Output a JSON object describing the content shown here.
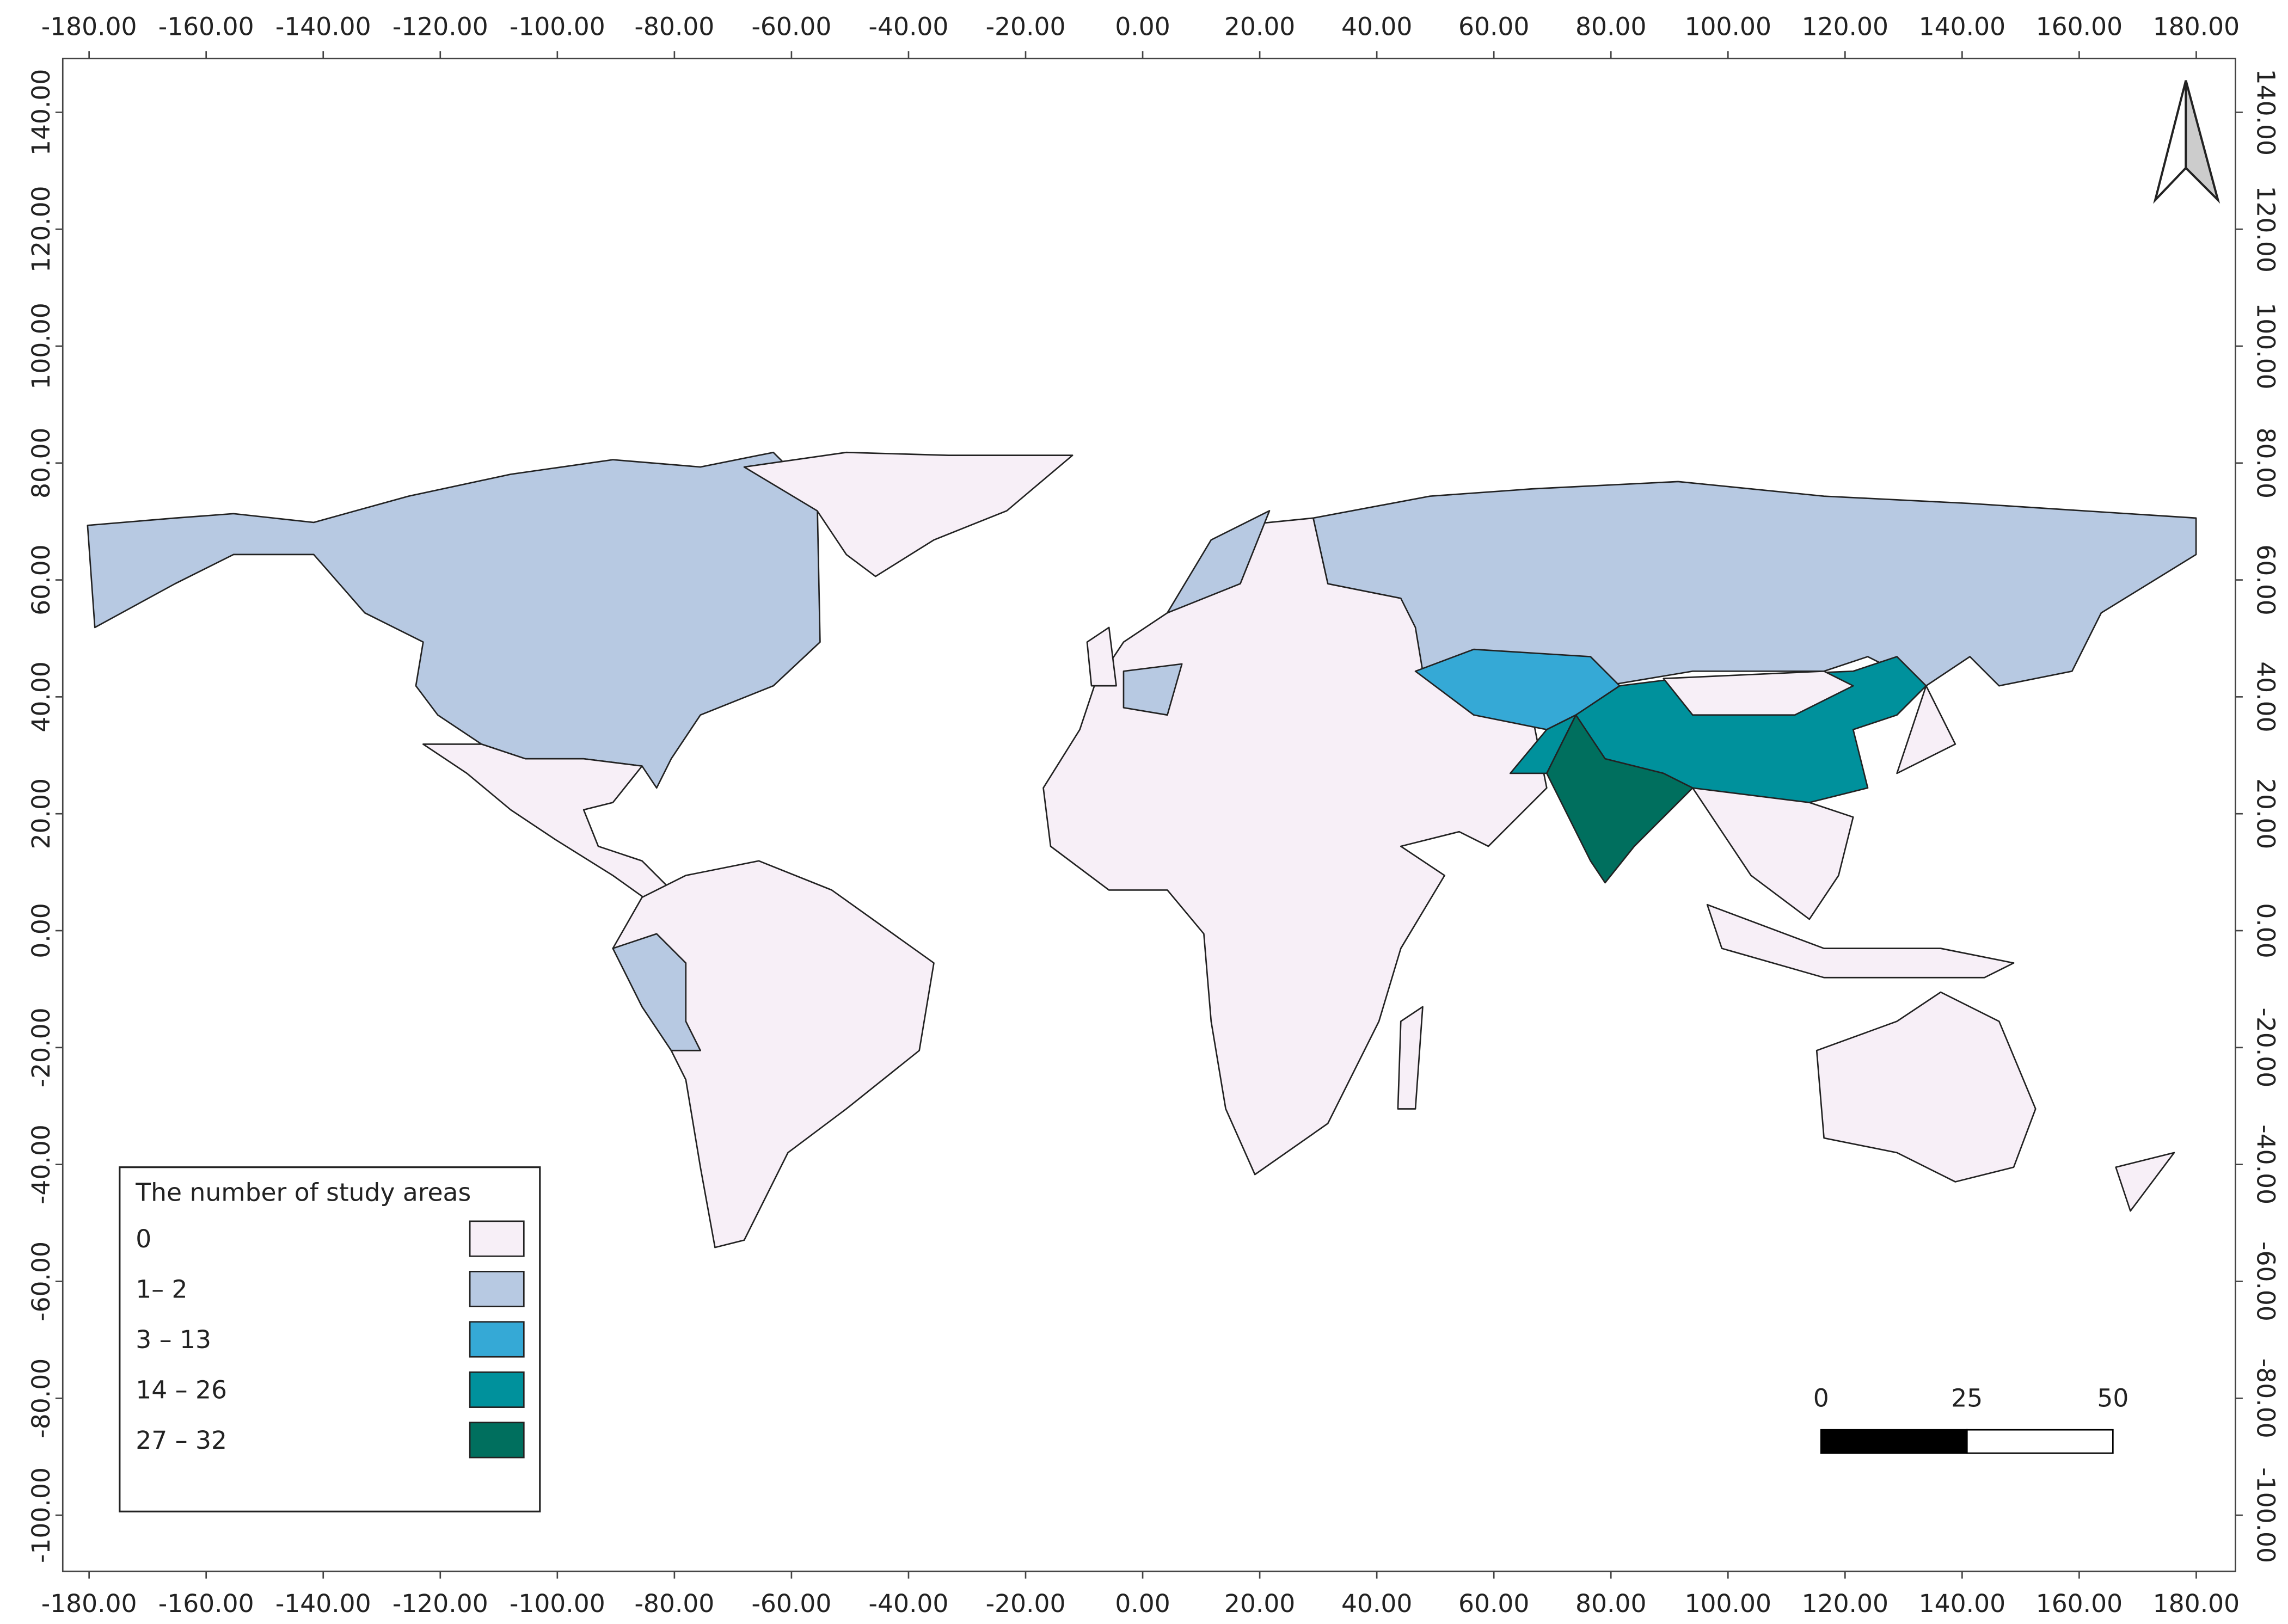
{
  "map": {
    "xlim": [
      -184.5,
      186.7
    ],
    "ylim": [
      -109.6,
      149.2
    ],
    "xticks": [
      {
        "value": -180,
        "label": "-180.00"
      },
      {
        "value": -160,
        "label": "-160.00"
      },
      {
        "value": -140,
        "label": "-140.00"
      },
      {
        "value": -120,
        "label": "-120.00"
      },
      {
        "value": -100,
        "label": "-100.00"
      },
      {
        "value": -80,
        "label": "-80.00"
      },
      {
        "value": -60,
        "label": "-60.00"
      },
      {
        "value": -40,
        "label": "-40.00"
      },
      {
        "value": -20,
        "label": "-20.00"
      },
      {
        "value": 0,
        "label": "0.00"
      },
      {
        "value": 20,
        "label": "20.00"
      },
      {
        "value": 40,
        "label": "40.00"
      },
      {
        "value": 60,
        "label": "60.00"
      },
      {
        "value": 80,
        "label": "80.00"
      },
      {
        "value": 100,
        "label": "100.00"
      },
      {
        "value": 120,
        "label": "120.00"
      },
      {
        "value": 140,
        "label": "140.00"
      },
      {
        "value": 160,
        "label": "160.00"
      },
      {
        "value": 180,
        "label": "180.00"
      }
    ],
    "yticks": [
      {
        "value": -100,
        "label": "-100.00"
      },
      {
        "value": -80,
        "label": "-80.00"
      },
      {
        "value": -60,
        "label": "-60.00"
      },
      {
        "value": -40,
        "label": "-40.00"
      },
      {
        "value": -20,
        "label": "-20.00"
      },
      {
        "value": 0,
        "label": "0.00"
      },
      {
        "value": 20,
        "label": "20.00"
      },
      {
        "value": 40,
        "label": "40.00"
      },
      {
        "value": 60,
        "label": "60.00"
      },
      {
        "value": 80,
        "label": "80.00"
      },
      {
        "value": 100,
        "label": "100.00"
      },
      {
        "value": 120,
        "label": "120.00"
      },
      {
        "value": 140,
        "label": "140.00"
      }
    ],
    "legend": {
      "title": "The number of study areas",
      "items": [
        {
          "label": "0",
          "color": "#f7eff7"
        },
        {
          "label": "1– 2",
          "color": "#b7c9e2"
        },
        {
          "label": "3 – 13",
          "color": "#35a9d6"
        },
        {
          "label": "14 – 26",
          "color": "#00919c"
        },
        {
          "label": "27 – 32",
          "color": "#006f5e"
        }
      ]
    },
    "scale_bar": {
      "ticks": [
        0,
        25,
        50
      ]
    }
  }
}
